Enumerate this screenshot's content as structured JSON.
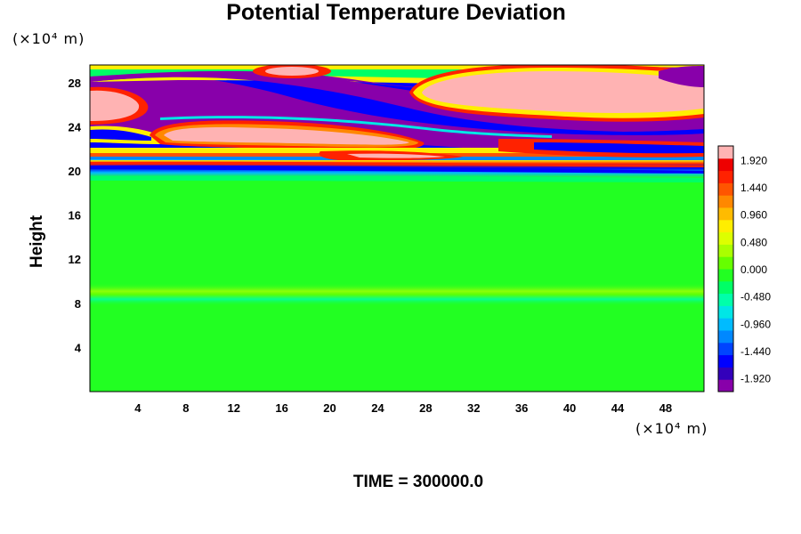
{
  "chart_data": {
    "type": "heatmap",
    "title": "Potential Temperature Deviation",
    "ylabel": "Height",
    "x_unit": "(×10⁴ m)",
    "y_unit": "(×10⁴ m)",
    "footer": "TIME = 300000.0",
    "x_ticks": [
      "4",
      "8",
      "12",
      "16",
      "20",
      "24",
      "28",
      "32",
      "36",
      "40",
      "44",
      "48"
    ],
    "y_ticks": [
      "4",
      "8",
      "12",
      "16",
      "20",
      "24",
      "28"
    ],
    "xlim": [
      0,
      51.2
    ],
    "ylim": [
      0,
      29.6
    ],
    "colorbar": {
      "range": [
        -2.16,
        2.16
      ],
      "tick_labels": [
        "1.920",
        "1.440",
        "0.960",
        "0.480",
        "0.000",
        "-0.480",
        "-0.960",
        "-1.440",
        "-1.920"
      ],
      "colors": [
        "#8800aa",
        "#3300bb",
        "#0000ff",
        "#0044ff",
        "#0088ff",
        "#00bbff",
        "#00e6e6",
        "#00ffaa",
        "#00ff66",
        "#22ff22",
        "#66ff00",
        "#aaff00",
        "#ddff00",
        "#ffee00",
        "#ffbb00",
        "#ff8800",
        "#ff5500",
        "#ff2200",
        "#ee0000",
        "#ffb3b3"
      ]
    },
    "regions": [
      {
        "name": "background",
        "value": 0.0
      },
      {
        "name": "lower band near height 9",
        "value": 0.3
      },
      {
        "name": "band near height 20",
        "value": -1.6
      },
      {
        "name": "upper cold layer",
        "value": -2.0
      },
      {
        "name": "upper warm cell x 36-48",
        "value": 2.0
      },
      {
        "name": "warm cell x 6-26, height 23",
        "value": 2.0
      },
      {
        "name": "warm cell x 0-4, height 26",
        "value": 2.0
      }
    ]
  }
}
